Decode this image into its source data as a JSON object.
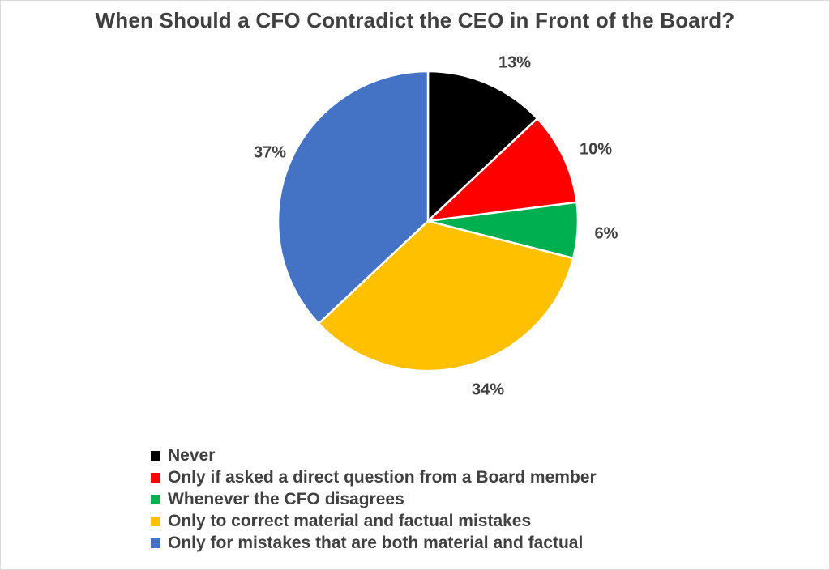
{
  "chart_data": {
    "type": "pie",
    "title": "When Should a CFO Contradict the CEO in Front of the Board?",
    "categories": [
      "Never",
      "Only if asked a direct question from a Board member",
      "Whenever the CFO disagrees",
      "Only to correct material and factual mistakes",
      "Only for mistakes that are both material and factual"
    ],
    "values": [
      13,
      10,
      6,
      34,
      37
    ],
    "data_labels": [
      "13%",
      "10%",
      "6%",
      "34%",
      "37%"
    ],
    "colors": [
      "#000000",
      "#ff0000",
      "#00b050",
      "#ffc000",
      "#4472c4"
    ],
    "start_angle": "top",
    "direction": "clockwise",
    "legend_position": "bottom-left"
  }
}
